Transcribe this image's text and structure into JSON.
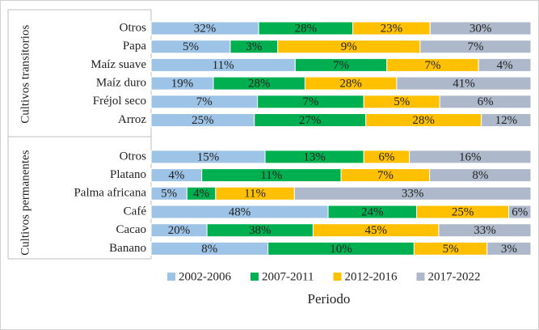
{
  "chart_data": {
    "type": "stacked-bar-100",
    "x_label": "Periodo",
    "groups": [
      {
        "name": "Cultivos transitorios",
        "categories": [
          "Otros",
          "Papa",
          "Maíz suave",
          "Maíz duro",
          "Fréjol seco",
          "Arroz"
        ]
      },
      {
        "name": "Cultivos permanentes",
        "categories": [
          "Otros",
          "Platano",
          "Palma africana",
          "Café",
          "Cacao",
          "Banano"
        ]
      }
    ],
    "series": [
      {
        "name": "2002-2006",
        "color": "#9dc3e6",
        "values": [
          32,
          5,
          11,
          19,
          7,
          25,
          15,
          4,
          5,
          48,
          20,
          8
        ],
        "value_labels": [
          "32%",
          "5%",
          "11%",
          "19%",
          "7%",
          "25%",
          "15%",
          "4%",
          "5%",
          "48%",
          "20%",
          "8%"
        ]
      },
      {
        "name": "2007-2011",
        "color": "#00b050",
        "values": [
          28,
          3,
          7,
          28,
          7,
          27,
          13,
          11,
          4,
          24,
          38,
          10
        ],
        "value_labels": [
          "28%",
          "3%",
          "7%",
          "28%",
          "7%",
          "27%",
          "13%",
          "11%",
          "4%",
          "24%",
          "38%",
          "10%"
        ]
      },
      {
        "name": "2012-2016",
        "color": "#ffc000",
        "values": [
          23,
          9,
          7,
          28,
          5,
          28,
          6,
          7,
          11,
          25,
          45,
          5
        ],
        "value_labels": [
          "23%",
          "9%",
          "7%",
          "28%",
          "5%",
          "28%",
          "6%",
          "7%",
          "11%",
          "25%",
          "45%",
          "5%"
        ]
      },
      {
        "name": "2017-2022",
        "color": "#adb9ca",
        "values": [
          30,
          7,
          4,
          41,
          6,
          12,
          16,
          8,
          33,
          6,
          33,
          3
        ],
        "value_labels": [
          "30%",
          "7%",
          "4%",
          "41%",
          "6%",
          "12%",
          "16%",
          "8%",
          "33%",
          "6%",
          "33%",
          "3%"
        ]
      }
    ],
    "legend": "bottom"
  }
}
